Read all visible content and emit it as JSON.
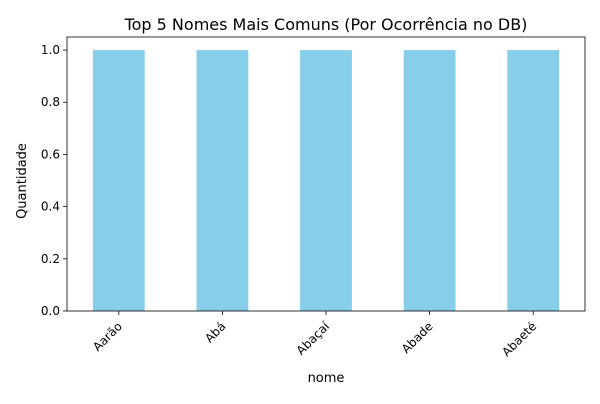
{
  "chart_data": {
    "type": "bar",
    "title": "Top 5 Nomes Mais Comuns (Por Ocorrência no DB)",
    "xlabel": "nome",
    "ylabel": "Quantidade",
    "categories": [
      "Aarão",
      "Abá",
      "Abaçaí",
      "Abade",
      "Abaeté"
    ],
    "values": [
      1,
      1,
      1,
      1,
      1
    ],
    "ylim": [
      0,
      1.05
    ],
    "yticks": [
      "0.0",
      "0.2",
      "0.4",
      "0.6",
      "0.8",
      "1.0"
    ],
    "bar_color": "#87ceeb",
    "grid": false,
    "legend": "none"
  }
}
